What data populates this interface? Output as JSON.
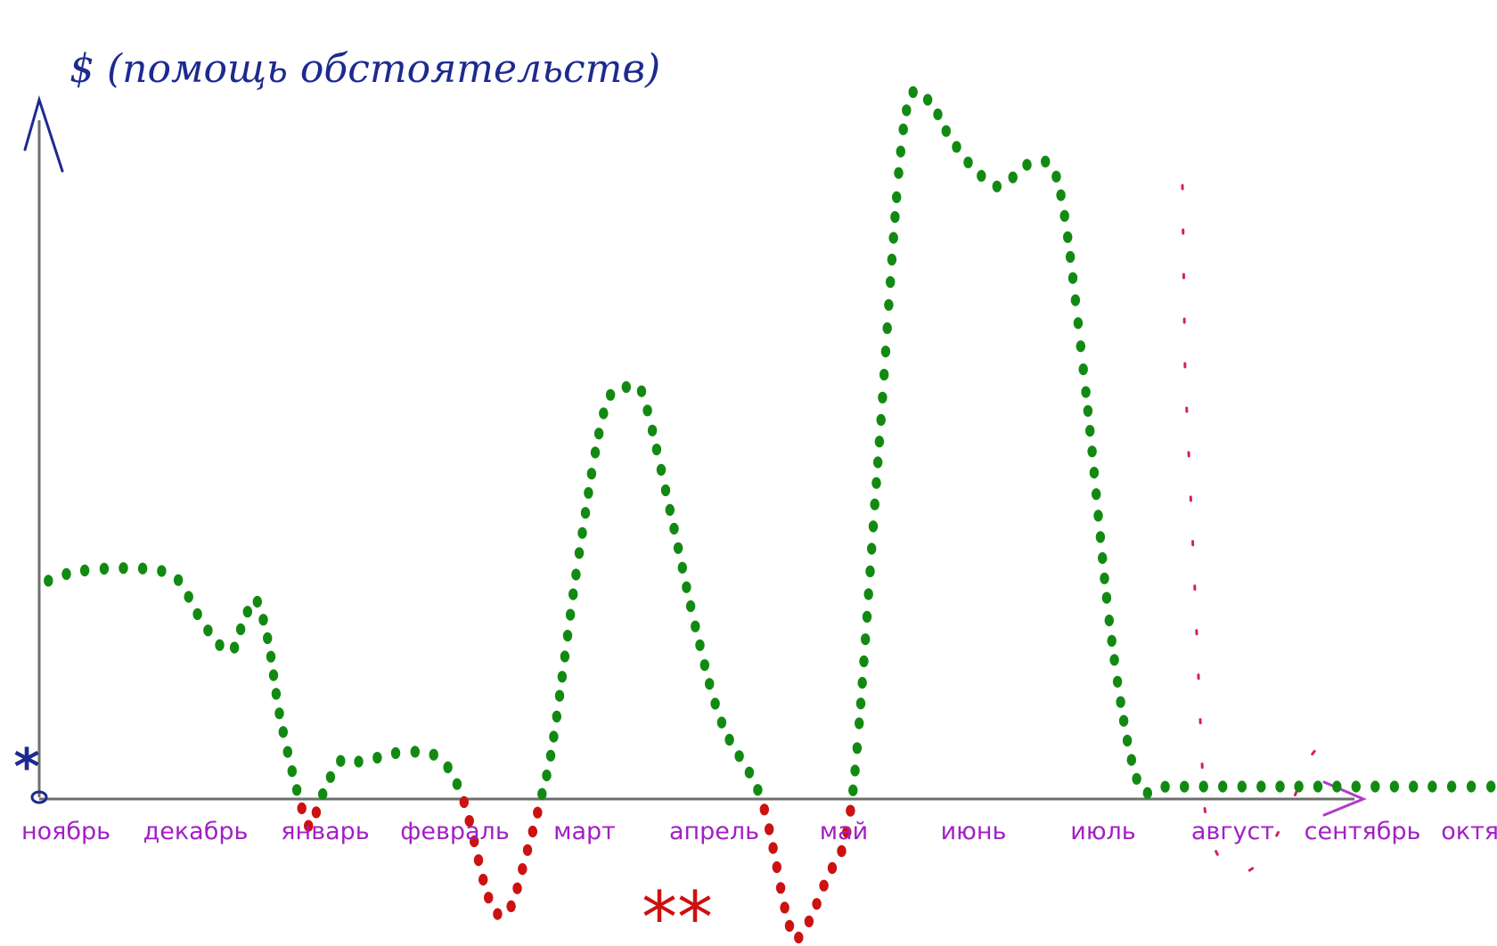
{
  "chart_data": {
    "type": "line",
    "title": "$ (помощь обстоятельств)",
    "xlabel": "",
    "ylabel": "",
    "ylim": [
      -100,
      570
    ],
    "grid": false,
    "legend": "none",
    "categories": [
      "ноябрь",
      "декабрь",
      "январь",
      "февраль",
      "март",
      "апрель",
      "май",
      "июнь",
      "июль",
      "август",
      "сентябрь",
      "октябрь"
    ],
    "x": [
      0.0,
      0.2,
      0.5,
      0.8,
      1.0,
      1.2,
      1.4,
      1.5,
      1.6,
      1.7,
      1.8,
      2.0,
      2.1,
      2.25,
      2.4,
      2.5,
      2.7,
      3.0,
      3.2,
      3.4,
      3.55,
      3.7,
      3.8,
      3.9,
      4.1,
      4.3,
      4.5,
      4.6,
      4.8,
      5.0,
      5.2,
      5.5,
      5.7,
      5.8,
      6.0,
      6.2,
      6.4,
      6.6,
      6.8,
      6.9,
      7.1,
      7.3,
      7.4,
      7.6,
      7.8,
      8.0,
      8.2,
      8.4,
      8.6,
      8.8,
      9.0,
      9.2,
      9.4,
      9.6,
      9.7,
      9.9,
      10.1,
      10.3,
      10.5,
      10.7,
      11.0,
      11.5
    ],
    "colors": {
      "positive": "#128a12",
      "negative": "#cc1111",
      "axis": "#6e6e6e",
      "month_label": "#a31fc4",
      "title": "#1d2a8f",
      "projection": "#d6205e",
      "axis_arrow": "#b03cc7"
    },
    "series": [
      {
        "values": [
          175,
          182,
          185,
          184,
          176,
          140,
          118,
          140,
          160,
          125,
          60,
          -20,
          0,
          30,
          30,
          32,
          37,
          34,
          0,
          -80,
          -90,
          -40,
          0,
          50,
          200,
          315,
          330,
          320,
          230,
          135,
          60,
          0,
          -95,
          -110,
          -65,
          0,
          270,
          540,
          560,
          540,
          510,
          492,
          495,
          510,
          490,
          330,
          130,
          15,
          10,
          10,
          10,
          10,
          10,
          10,
          10,
          10,
          10,
          10,
          10,
          10,
          10,
          10
        ]
      }
    ],
    "annotations": [
      "*",
      "**"
    ]
  }
}
